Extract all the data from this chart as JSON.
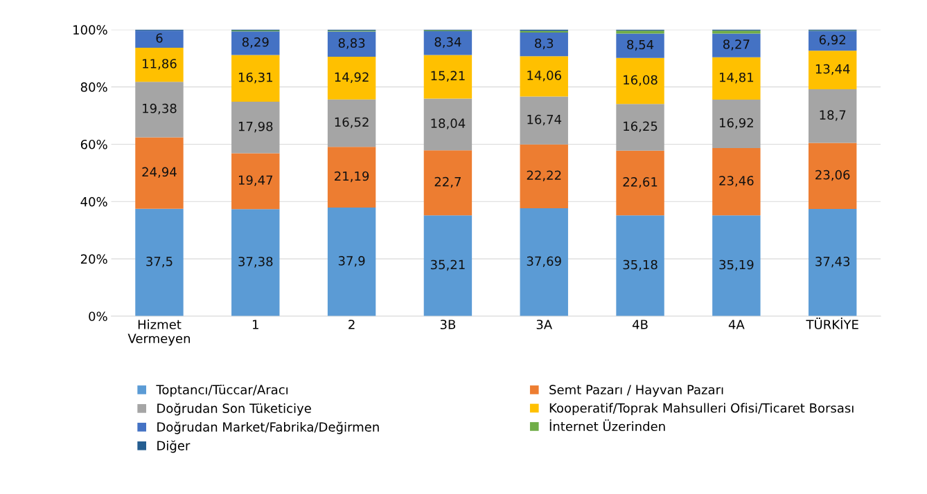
{
  "chart_data": {
    "type": "bar",
    "stacked": true,
    "categories": [
      "Hizmet\nVermeyen",
      "1",
      "2",
      "3B",
      "3A",
      "4B",
      "4A",
      "TÜRKİYE"
    ],
    "series": [
      {
        "name": "Toptancı/Tüccar/Aracı",
        "color": "#5b9bd5",
        "values": [
          37.5,
          37.38,
          37.9,
          35.21,
          37.69,
          35.18,
          35.19,
          37.43
        ],
        "value_labels": [
          "37,5",
          "37,38",
          "37,9",
          "35,21",
          "37,69",
          "35,18",
          "35,19",
          "37,43"
        ]
      },
      {
        "name": "Semt Pazarı / Hayvan Pazarı",
        "color": "#ed7d31",
        "values": [
          24.94,
          19.47,
          21.19,
          22.7,
          22.22,
          22.61,
          23.46,
          23.06
        ],
        "value_labels": [
          "24,94",
          "19,47",
          "21,19",
          "22,7",
          "22,22",
          "22,61",
          "23,46",
          "23,06"
        ]
      },
      {
        "name": "Doğrudan Son Tüketiciye",
        "color": "#a5a5a5",
        "values": [
          19.38,
          17.98,
          16.52,
          18.04,
          16.74,
          16.25,
          16.92,
          18.7
        ],
        "value_labels": [
          "19,38",
          "17,98",
          "16,52",
          "18,04",
          "16,74",
          "16,25",
          "16,92",
          "18,7"
        ]
      },
      {
        "name": "Kooperatif/Toprak Mahsulleri Ofisi/Ticaret Borsası",
        "color": "#ffc000",
        "values": [
          11.86,
          16.31,
          14.92,
          15.21,
          14.06,
          16.08,
          14.81,
          13.44
        ],
        "value_labels": [
          "11,86",
          "16,31",
          "14,92",
          "15,21",
          "14,06",
          "16,08",
          "14,81",
          "13,44"
        ]
      },
      {
        "name": "Doğrudan Market/Fabrika/Değirmen",
        "color": "#4472c4",
        "values": [
          6,
          8.29,
          8.83,
          8.34,
          8.3,
          8.54,
          8.27,
          6.92
        ],
        "value_labels": [
          "6",
          "8,29",
          "8,83",
          "8,34",
          "8,3",
          "8,54",
          "8,27",
          "6,92"
        ]
      },
      {
        "name": "İnternet Üzerinden",
        "color": "#70ad47",
        "values": [
          null,
          0.3,
          0.3,
          0.3,
          0.5,
          1.0,
          1.0,
          0.1
        ]
      },
      {
        "name": "Diğer",
        "color": "#255e91",
        "values": [
          0.3,
          0.3,
          0.3,
          0.2,
          0.5,
          0.3,
          0.4,
          0.4
        ]
      }
    ],
    "ylim": [
      0,
      100
    ],
    "yticks": [
      {
        "value": 0,
        "label": "0%"
      },
      {
        "value": 20,
        "label": "20%"
      },
      {
        "value": 40,
        "label": "40%"
      },
      {
        "value": 60,
        "label": "60%"
      },
      {
        "value": 80,
        "label": "80%"
      },
      {
        "value": 100,
        "label": "100%"
      }
    ],
    "grid": "y",
    "legend": "bottom"
  }
}
